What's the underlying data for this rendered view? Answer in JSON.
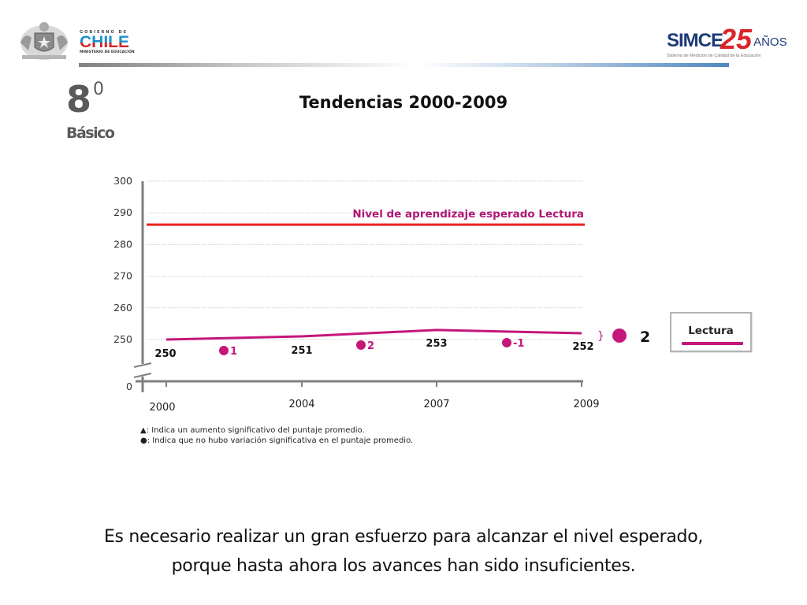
{
  "header": {
    "gov_logo": {
      "line1": "GOBIERNO DE",
      "line2": "CHILE",
      "line3": "MINISTERIO DE EDUCACIÓN",
      "icon": "coat-of-arms-icon"
    },
    "simce_logo": {
      "word": "SIMCE",
      "number": "25",
      "anos": "AÑOS",
      "subtitle": "Sistema de Medición de Calidad de la Educación"
    }
  },
  "grade": {
    "number": "8",
    "superscript": "0",
    "level": "Básico"
  },
  "title": "Tendencias 2000-2009",
  "chart_data": {
    "type": "line",
    "title": "Tendencias 2000-2009",
    "xlabel": "",
    "ylabel": "",
    "x": [
      "2000",
      "2004",
      "2007",
      "2009"
    ],
    "series": [
      {
        "name": "Lectura",
        "color": "#c4177a",
        "values": [
          250,
          251,
          253,
          252
        ]
      }
    ],
    "data_labels": [
      "250",
      "251",
      "253",
      "252"
    ],
    "differences": [
      {
        "between": [
          "2000",
          "2004"
        ],
        "label": "1",
        "marker": "circle"
      },
      {
        "between": [
          "2004",
          "2007"
        ],
        "label": "2",
        "marker": "circle"
      },
      {
        "between": [
          "2007",
          "2009"
        ],
        "label": "-1",
        "marker": "circle"
      }
    ],
    "total_difference": {
      "label": "2",
      "marker": "circle"
    },
    "reference_line": {
      "label": "Nivel de aprendizaje esperado Lectura",
      "value": 286.3,
      "color": "#e8221f",
      "label_color": "#b01874"
    },
    "y_ticks": [
      0,
      250,
      260,
      270,
      280,
      290,
      300
    ],
    "ylim": [
      245,
      300
    ],
    "axis_break": true,
    "grid": true,
    "legend": {
      "entries": [
        "Lectura"
      ],
      "position": "right"
    }
  },
  "notes": [
    {
      "symbol": "▲",
      "text": ": Indica un aumento significativo del puntaje promedio."
    },
    {
      "symbol": "●",
      "text": ": Indica que no hubo variación significativa en el puntaje promedio."
    }
  ],
  "conclusion": {
    "line1": "Es necesario realizar un gran esfuerzo para alcanzar el nivel esperado,",
    "line2": "porque hasta ahora los avances han sido insuficientes."
  }
}
